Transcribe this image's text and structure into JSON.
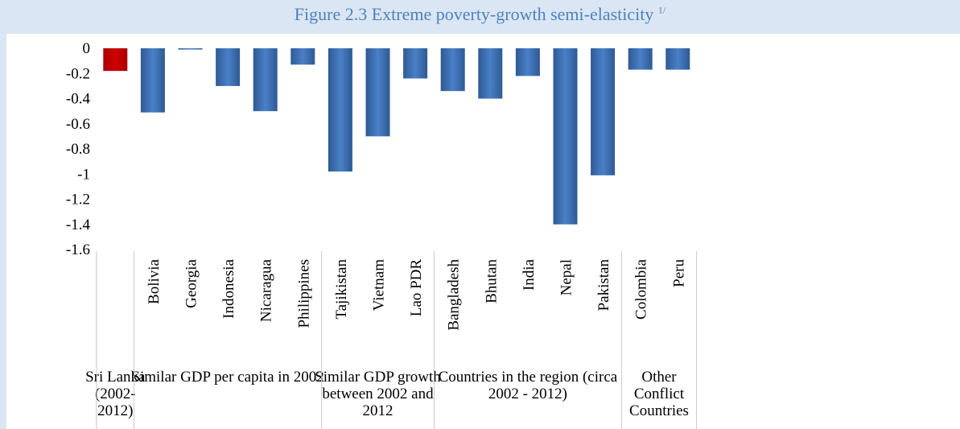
{
  "chart_data": {
    "type": "bar",
    "title": "Figure 2.3 Extreme poverty-growth semi-elasticity",
    "title_superscript": "1/",
    "xlabel": "",
    "ylabel": "",
    "ylim": [
      -1.6,
      0
    ],
    "yticks": [
      "0",
      "-0.2",
      "-0.4",
      "-0.6",
      "-0.8",
      "-1",
      "-1.2",
      "-1.4",
      "-1.6"
    ],
    "ytick_values": [
      0,
      -0.2,
      -0.4,
      -0.6,
      -0.8,
      -1,
      -1.2,
      -1.4,
      -1.6
    ],
    "grid": false,
    "legend": "none",
    "colors": {
      "highlight": "#c00000",
      "default": "#4a7ec4",
      "default_dark": "#2e5a93"
    },
    "groups": [
      {
        "label_lines": [
          "Sri Lanka",
          "(2002-",
          "2012)"
        ],
        "categories": [
          ""
        ],
        "values": [
          -0.18
        ],
        "highlight": true
      },
      {
        "label_lines": [
          "Similar GDP per capita in 2002"
        ],
        "categories": [
          "Bolivia",
          "Georgia",
          "Indonesia",
          "Nicaragua",
          "Philippines"
        ],
        "values": [
          -0.51,
          -0.01,
          -0.3,
          -0.5,
          -0.13
        ]
      },
      {
        "label_lines": [
          "Similar GDP growth",
          "between 2002 and",
          "2012"
        ],
        "categories": [
          "Tajikistan",
          "Vietnam",
          "Lao PDR"
        ],
        "values": [
          -0.98,
          -0.7,
          -0.24
        ]
      },
      {
        "label_lines": [
          "Countries in the region (circa",
          "2002 - 2012)"
        ],
        "categories": [
          "Bangladesh",
          "Bhutan",
          "India",
          "Nepal",
          "Pakistan"
        ],
        "values": [
          -0.34,
          -0.4,
          -0.22,
          -1.4,
          -1.01
        ]
      },
      {
        "label_lines": [
          "Other",
          "Conflict",
          "Countries"
        ],
        "categories": [
          "Colombia",
          "Peru"
        ],
        "values": [
          -0.17,
          -0.17
        ]
      }
    ]
  }
}
